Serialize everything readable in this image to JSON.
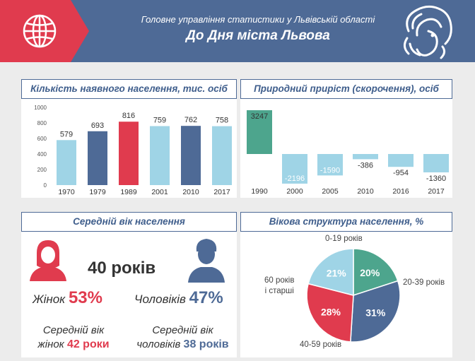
{
  "header": {
    "subtitle": "Головне управління статистики у Львівській області",
    "title": "До Дня міста Львова"
  },
  "colors": {
    "blue": "#4e6a96",
    "red": "#e03b4e",
    "lightblue": "#9fd4e6",
    "green": "#4da58d"
  },
  "panels": {
    "population_title": "Кількість наявного населення, тис. осіб",
    "natural_title": "Природний приріст (скорочення), осіб",
    "age_title": "Середній вік населення",
    "structure_title": "Вікова структура населення, %"
  },
  "chart_data": [
    {
      "type": "bar",
      "title": "Кількість наявного населення, тис. осіб",
      "categories": [
        "1970",
        "1979",
        "1989",
        "2001",
        "2010",
        "2017"
      ],
      "values": [
        579,
        693,
        816,
        759,
        762,
        758
      ],
      "value_labels": [
        "579",
        "693",
        "816",
        "759",
        "762",
        "758"
      ],
      "colors": [
        "#9fd4e6",
        "#4e6a96",
        "#e03b4e",
        "#9fd4e6",
        "#4e6a96",
        "#9fd4e6"
      ],
      "ylim": [
        0,
        1000
      ],
      "yticks": [
        "0",
        "200",
        "400",
        "600",
        "800",
        "1000"
      ],
      "grid": false
    },
    {
      "type": "bar",
      "title": "Природний приріст (скорочення), осіб",
      "categories": [
        "1990",
        "2000",
        "2005",
        "2010",
        "2016",
        "2017"
      ],
      "values": [
        3247,
        -2196,
        -1590,
        -386,
        -954,
        -1360
      ],
      "value_labels": [
        "3247",
        "-2196",
        "-1590",
        "-386",
        "-954",
        "-1360"
      ],
      "colors": [
        "#4da58d",
        "#9fd4e6",
        "#9fd4e6",
        "#9fd4e6",
        "#9fd4e6",
        "#9fd4e6"
      ]
    },
    {
      "type": "pie",
      "title": "Вікова структура населення, %",
      "labels": [
        "0-19 років",
        "20-39 років",
        "40-59 років",
        "60 років і старші"
      ],
      "values": [
        20,
        31,
        28,
        21
      ],
      "value_labels": [
        "20%",
        "31%",
        "28%",
        "21%"
      ],
      "colors": [
        "#4da58d",
        "#4e6a96",
        "#e03b4e",
        "#9fd4e6"
      ]
    }
  ],
  "age": {
    "total": "40 років",
    "women_label": "Жінок",
    "women_pct": "53%",
    "men_label": "Чоловіків",
    "men_pct": "47%",
    "women_avg_line1": "Середній вік",
    "women_avg_line2": "жінок",
    "women_avg_value": "42 роки",
    "men_avg_line1": "Середній вік",
    "men_avg_line2": "чоловіків",
    "men_avg_value": "38 років"
  },
  "pie_labels": {
    "l1": "0-19 років",
    "l2": "20-39 років",
    "l3": "40-59 років",
    "l4a": "60 років",
    "l4b": "і старші"
  }
}
